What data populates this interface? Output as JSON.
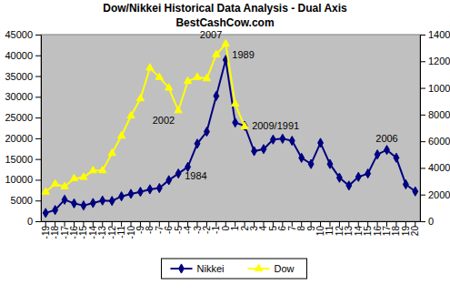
{
  "chart_data": {
    "type": "line",
    "title": "Dow/Nikkei Historical Data Analysis - Dual Axis",
    "subtitle": "BestCashCow.com",
    "categories": [
      "-19",
      "-18",
      "-17",
      "-16",
      "-15",
      "-14",
      "-13",
      "-12",
      "-11",
      "-10",
      "-9",
      "-8",
      "-7",
      "-6",
      "-5",
      "-4",
      "-3",
      "-2",
      "-1",
      "0",
      "1",
      "2",
      "3",
      "4",
      "5",
      "6",
      "7",
      "8",
      "9",
      "10",
      "11",
      "12",
      "13",
      "14",
      "15",
      "16",
      "17",
      "18",
      "19",
      "20"
    ],
    "series": [
      {
        "name": "Nikkei",
        "color": "#000080",
        "marker": "diamond",
        "axis": "y",
        "values": [
          2000,
          2700,
          5200,
          4300,
          3800,
          4400,
          5000,
          4900,
          6000,
          6600,
          7100,
          7700,
          8000,
          9900,
          11500,
          13100,
          18700,
          21600,
          30200,
          38900,
          23800,
          23000,
          16900,
          17400,
          19700,
          19900,
          19400,
          15300,
          13800,
          18900,
          13800,
          10500,
          8600,
          10700,
          11500,
          16100,
          17200,
          15300,
          8900,
          7200
        ]
      },
      {
        "name": "Dow",
        "color": "#FFFF00",
        "marker": "triangle",
        "axis": "y2",
        "values": [
          2200,
          2800,
          2600,
          3200,
          3300,
          3800,
          3800,
          5100,
          6400,
          7900,
          9200,
          11500,
          10800,
          10000,
          8300,
          10500,
          10800,
          10700,
          12500,
          13300,
          8800,
          7100,
          null,
          null,
          null,
          null,
          null,
          null,
          null,
          null,
          null,
          null,
          null,
          null,
          null,
          null,
          null,
          null,
          null,
          null
        ]
      }
    ],
    "ylim": [
      0,
      45000
    ],
    "yticks": [
      0,
      5000,
      10000,
      15000,
      20000,
      25000,
      30000,
      35000,
      40000,
      45000
    ],
    "y2lim": [
      0,
      14000
    ],
    "y2ticks": [
      0,
      2000,
      4000,
      6000,
      8000,
      10000,
      12000,
      14000
    ],
    "annotations": [
      {
        "text": "2007",
        "x": "0",
        "y": 13300,
        "axis": "y2"
      },
      {
        "text": "1989",
        "x": "0",
        "y": 38900,
        "axis": "y"
      },
      {
        "text": "2002",
        "x": "-5",
        "y": 8300,
        "axis": "y2"
      },
      {
        "text": "1984",
        "x": "-5",
        "y": 11500,
        "axis": "y"
      },
      {
        "text": "2009/1991",
        "x": "2",
        "y": 23000,
        "axis": "y"
      },
      {
        "text": "2006",
        "x": "17",
        "y": 17200,
        "axis": "y"
      }
    ],
    "grid": false,
    "legend": "bottom"
  }
}
